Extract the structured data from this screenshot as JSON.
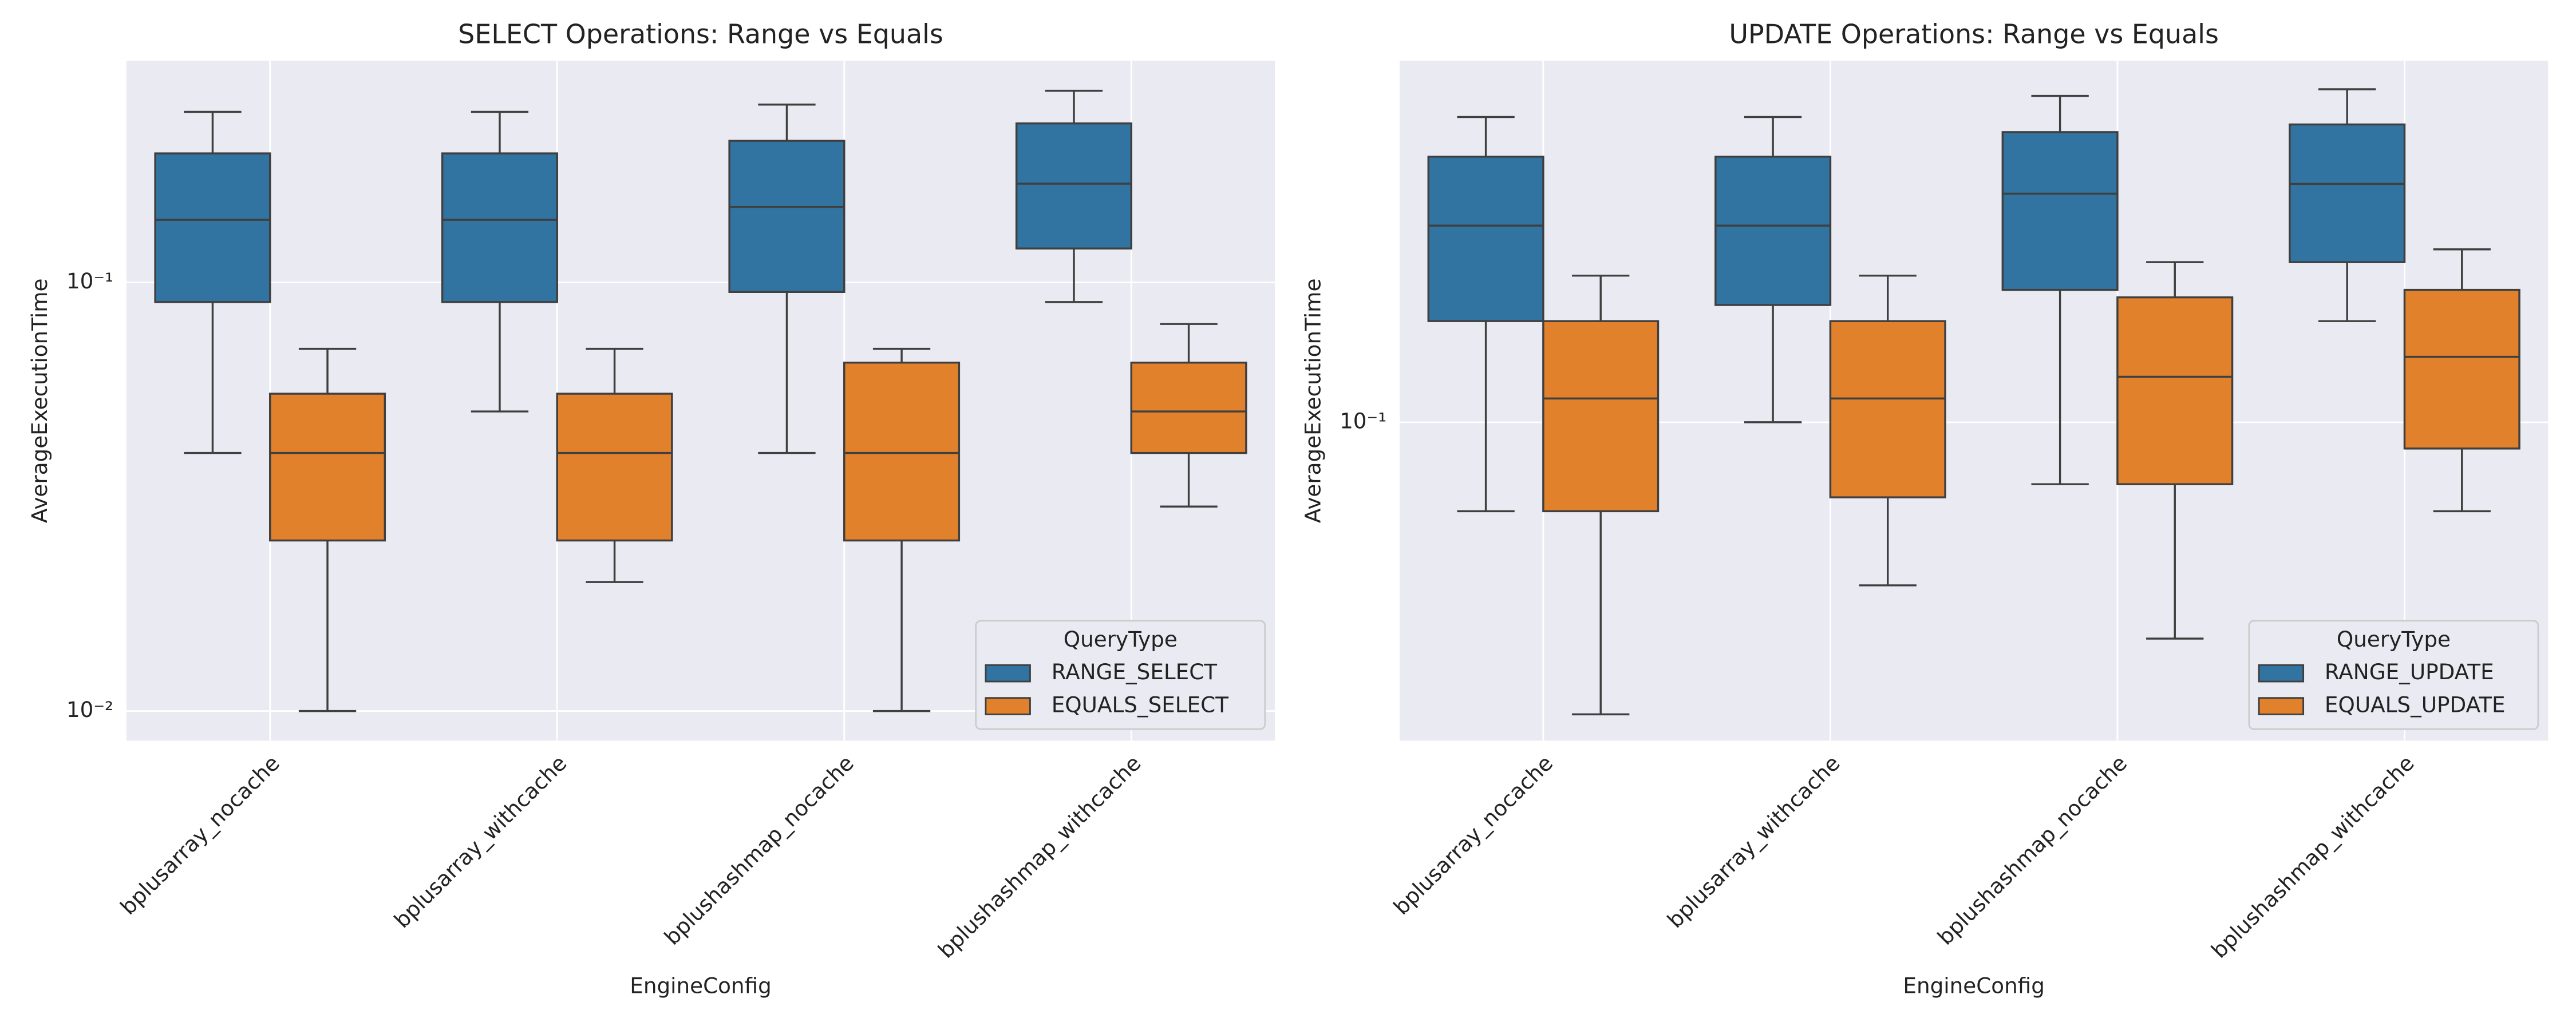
{
  "chart_data": [
    {
      "type": "box",
      "title": "SELECT Operations: Range vs Equals",
      "xlabel": "EngineConfig",
      "ylabel": "AverageExecutionTime",
      "categories": [
        "bplusarray_nocache",
        "bplusarray_withcache",
        "bplushashmap_nocache",
        "bplushashmap_withcache"
      ],
      "series": [
        {
          "name": "RANGE_SELECT",
          "color": "#3274a1",
          "low": [
            0.04,
            0.05,
            0.04,
            0.09
          ],
          "q1": [
            0.09,
            0.09,
            0.095,
            0.12
          ],
          "median": [
            0.14,
            0.14,
            0.15,
            0.17
          ],
          "q3": [
            0.2,
            0.2,
            0.214,
            0.235
          ],
          "high": [
            0.25,
            0.25,
            0.26,
            0.28
          ]
        },
        {
          "name": "EQUALS_SELECT",
          "color": "#e1812c",
          "low": [
            0.01,
            0.02,
            0.01,
            0.03
          ],
          "q1": [
            0.025,
            0.025,
            0.025,
            0.04
          ],
          "median": [
            0.04,
            0.04,
            0.04,
            0.05
          ],
          "q3": [
            0.055,
            0.055,
            0.065,
            0.065
          ],
          "high": [
            0.07,
            0.07,
            0.07,
            0.08
          ]
        }
      ],
      "ylim": [
        0.00853,
        0.329
      ],
      "yticks": [
        {
          "value": 0.01,
          "label": "10⁻²"
        },
        {
          "value": 0.1,
          "label": "10⁻¹"
        }
      ],
      "log_y": true,
      "grid": true,
      "legend_title": "QueryType",
      "legend": "lower right"
    },
    {
      "type": "box",
      "title": "UPDATE Operations: Range vs Equals",
      "xlabel": "EngineConfig",
      "ylabel": "AverageExecutionTime",
      "categories": [
        "bplusarray_nocache",
        "bplusarray_withcache",
        "bplushashmap_nocache",
        "bplushashmap_withcache"
      ],
      "series": [
        {
          "name": "RANGE_UPDATE",
          "color": "#3274a1",
          "low": [
            0.07,
            0.1,
            0.078,
            0.15
          ],
          "q1": [
            0.15,
            0.16,
            0.17,
            0.19
          ],
          "median": [
            0.22,
            0.22,
            0.25,
            0.26
          ],
          "q3": [
            0.29,
            0.29,
            0.32,
            0.33
          ],
          "high": [
            0.34,
            0.34,
            0.37,
            0.38
          ]
        },
        {
          "name": "EQUALS_UPDATE",
          "color": "#e1812c",
          "low": [
            0.031,
            0.052,
            0.042,
            0.07
          ],
          "q1": [
            0.07,
            0.074,
            0.078,
            0.09
          ],
          "median": [
            0.11,
            0.11,
            0.12,
            0.13
          ],
          "q3": [
            0.15,
            0.15,
            0.165,
            0.17
          ],
          "high": [
            0.18,
            0.18,
            0.19,
            0.2
          ]
        }
      ],
      "ylim": [
        0.0279,
        0.426
      ],
      "yticks": [
        {
          "value": 0.1,
          "label": "10⁻¹"
        }
      ],
      "log_y": true,
      "grid": true,
      "legend_title": "QueryType",
      "legend": "lower right"
    }
  ]
}
